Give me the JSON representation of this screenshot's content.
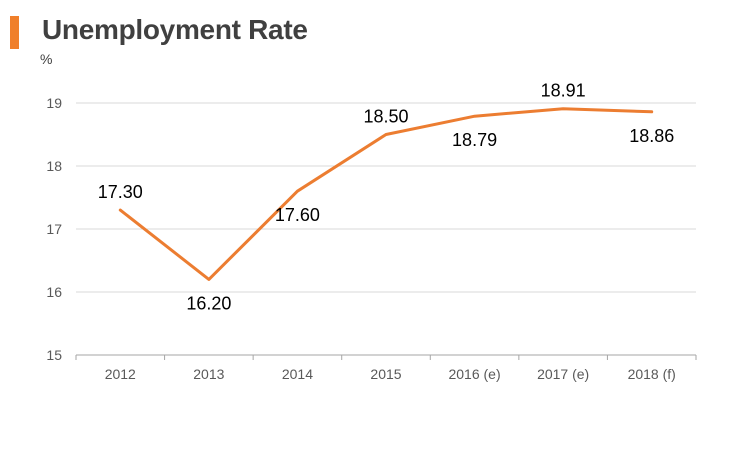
{
  "chart_data": {
    "type": "line",
    "title": "Unemployment Rate",
    "ylabel": "%",
    "xlabel": "",
    "categories": [
      "2012",
      "2013",
      "2014",
      "2015",
      "2016 (e)",
      "2017 (e)",
      "2018 (f)"
    ],
    "series": [
      {
        "name": "Unemployment Rate",
        "values": [
          17.3,
          16.2,
          17.6,
          18.5,
          18.79,
          18.91,
          18.86
        ],
        "labels": [
          "17.30",
          "16.20",
          "17.60",
          "18.50",
          "18.79",
          "18.91",
          "18.86"
        ],
        "label_positions": [
          "above",
          "below",
          "below",
          "above",
          "below",
          "above",
          "below"
        ]
      }
    ],
    "ylim": [
      15,
      19
    ],
    "yticks": [
      "15",
      "16",
      "17",
      "18",
      "19"
    ],
    "grid": true,
    "legend": "none"
  },
  "colors": {
    "accent": "#f07f2a",
    "line": "#ec7d31",
    "grid": "#d9d9d9",
    "axis": "#a6a6a6"
  }
}
